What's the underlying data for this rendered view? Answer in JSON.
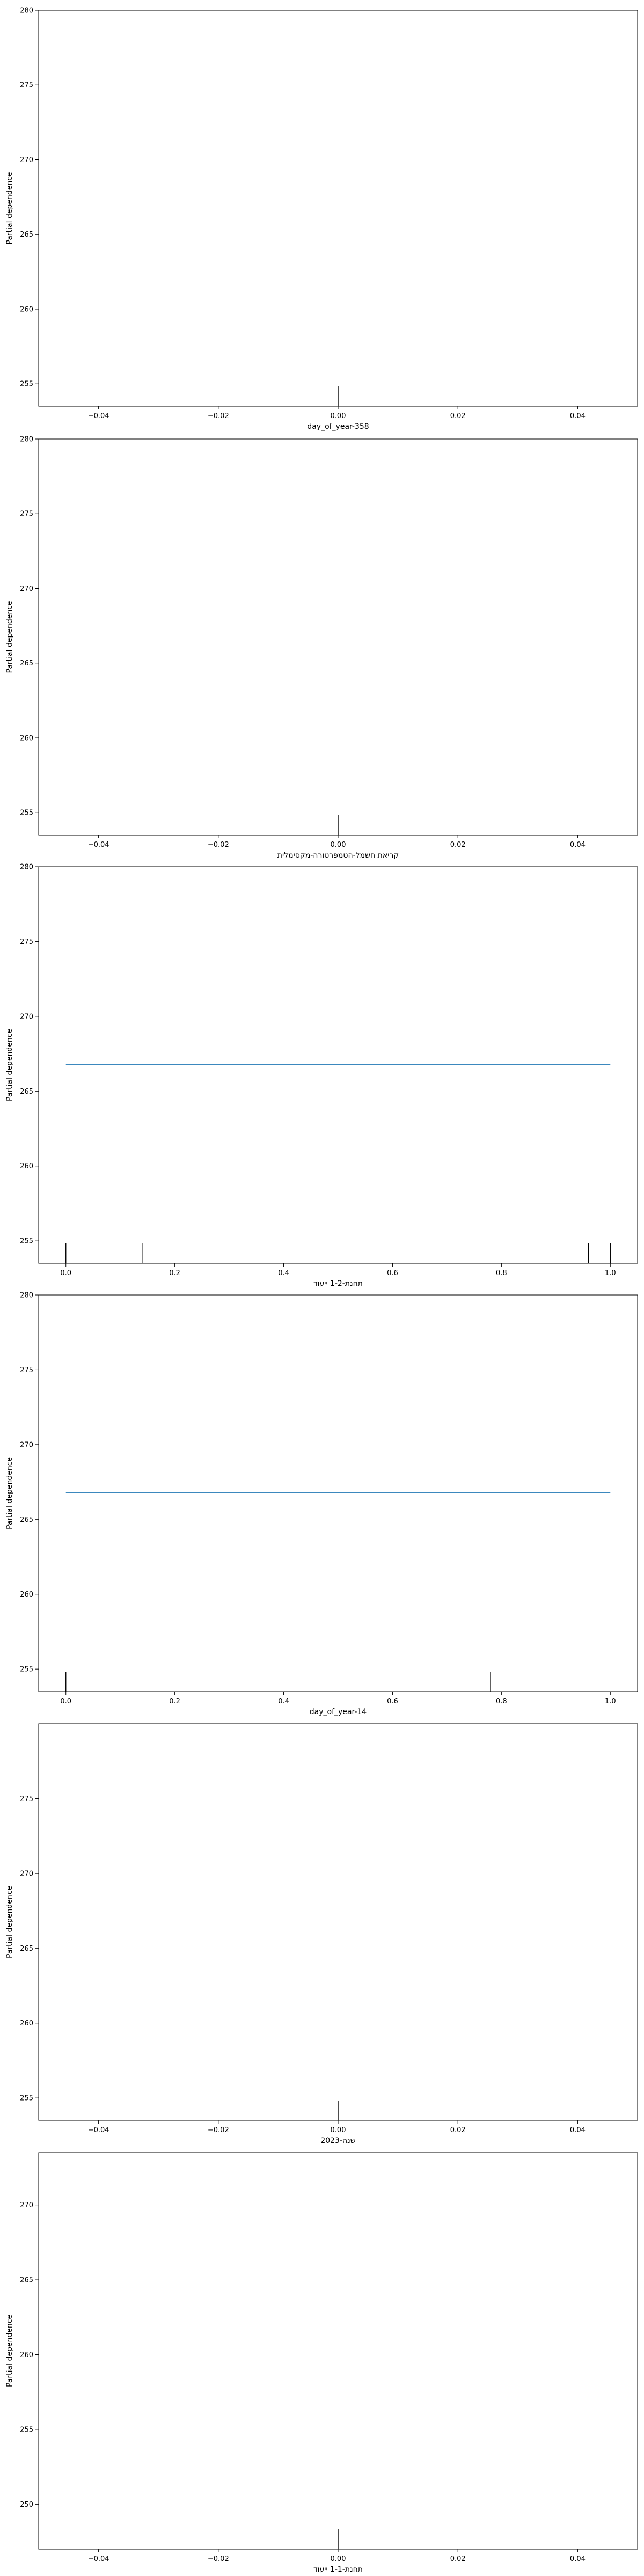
{
  "chart_data": [
    {
      "type": "line",
      "xlabel": "day_of_year-358",
      "ylabel": "Partial dependence",
      "xlim": [
        -0.05,
        0.05
      ],
      "ylim": [
        253.5,
        280
      ],
      "xticks": [
        -0.04,
        -0.02,
        0.0,
        0.02,
        0.04
      ],
      "xtick_labels": [
        "−0.04",
        "−0.02",
        "0.00",
        "0.02",
        "0.04"
      ],
      "yticks": [
        255,
        260,
        265,
        270,
        275,
        280
      ],
      "ytick_labels": [
        "255",
        "260",
        "265",
        "270",
        "275",
        "280"
      ],
      "series": [],
      "rug": [
        0.0
      ]
    },
    {
      "type": "line",
      "xlabel": "קריאת חשמל-הטמפרטורה-מקסימלית",
      "ylabel": "Partial dependence",
      "xlim": [
        -0.05,
        0.05
      ],
      "ylim": [
        253.5,
        280
      ],
      "xticks": [
        -0.04,
        -0.02,
        0.0,
        0.02,
        0.04
      ],
      "xtick_labels": [
        "−0.04",
        "−0.02",
        "0.00",
        "0.02",
        "0.04"
      ],
      "yticks": [
        255,
        260,
        265,
        270,
        275,
        280
      ],
      "ytick_labels": [
        "255",
        "260",
        "265",
        "270",
        "275",
        "280"
      ],
      "series": [],
      "rug": [
        0.0
      ]
    },
    {
      "type": "line",
      "xlabel": "תחנת-1-2 ייעוד",
      "ylabel": "Partial dependence",
      "xlim": [
        -0.05,
        1.05
      ],
      "ylim": [
        253.5,
        280
      ],
      "xticks": [
        0.0,
        0.2,
        0.4,
        0.6,
        0.8,
        1.0
      ],
      "xtick_labels": [
        "0.0",
        "0.2",
        "0.4",
        "0.6",
        "0.8",
        "1.0"
      ],
      "yticks": [
        255,
        260,
        265,
        270,
        275,
        280
      ],
      "ytick_labels": [
        "255",
        "260",
        "265",
        "270",
        "275",
        "280"
      ],
      "series": [
        {
          "color": "#1f77b4",
          "x": [
            0.0,
            1.0
          ],
          "y": [
            266.8,
            266.8
          ]
        }
      ],
      "rug": [
        0.0,
        0.14,
        0.96,
        1.0
      ]
    },
    {
      "type": "line",
      "xlabel": "day_of_year-14",
      "ylabel": "Partial dependence",
      "xlim": [
        -0.05,
        1.05
      ],
      "ylim": [
        253.5,
        280
      ],
      "xticks": [
        0.0,
        0.2,
        0.4,
        0.6,
        0.8,
        1.0
      ],
      "xtick_labels": [
        "0.0",
        "0.2",
        "0.4",
        "0.6",
        "0.8",
        "1.0"
      ],
      "yticks": [
        255,
        260,
        265,
        270,
        275,
        280
      ],
      "ytick_labels": [
        "255",
        "260",
        "265",
        "270",
        "275",
        "280"
      ],
      "series": [
        {
          "color": "#1f77b4",
          "x": [
            0.0,
            1.0
          ],
          "y": [
            266.8,
            266.8
          ]
        }
      ],
      "rug": [
        0.0,
        0.78
      ]
    },
    {
      "type": "line",
      "xlabel": "שנה-2023",
      "ylabel": "Partial dependence",
      "xlim": [
        -0.05,
        0.05
      ],
      "ylim": [
        253.5,
        280
      ],
      "xticks": [
        -0.04,
        -0.02,
        0.0,
        0.02,
        0.04
      ],
      "xtick_labels": [
        "−0.04",
        "−0.02",
        "0.00",
        "0.02",
        "0.04"
      ],
      "yticks": [
        255,
        260,
        265,
        270,
        275
      ],
      "ytick_labels": [
        "255",
        "260",
        "265",
        "270",
        "275"
      ],
      "series": [],
      "rug": [
        0.0
      ]
    },
    {
      "type": "line",
      "xlabel": "תחנת-1-1 ייעוד",
      "ylabel": "Partial dependence",
      "xlim": [
        -0.05,
        0.05
      ],
      "ylim": [
        247,
        273.5
      ],
      "xticks": [
        -0.04,
        -0.02,
        0.0,
        0.02,
        0.04
      ],
      "xtick_labels": [
        "−0.04",
        "−0.02",
        "0.00",
        "0.02",
        "0.04"
      ],
      "yticks": [
        250,
        255,
        260,
        265,
        270
      ],
      "ytick_labels": [
        "250",
        "255",
        "260",
        "265",
        "270"
      ],
      "series": [],
      "rug": [
        0.0
      ]
    }
  ]
}
